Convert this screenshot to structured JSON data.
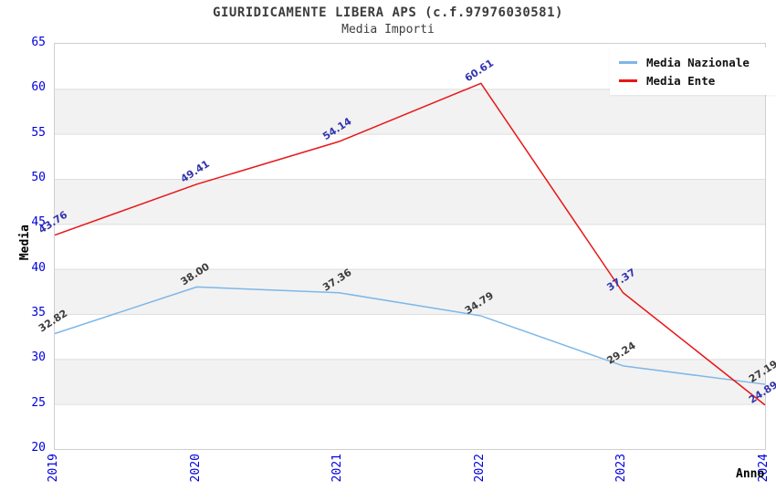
{
  "chart_data": {
    "type": "line",
    "title": "GIURIDICAMENTE LIBERA APS (c.f.97976030581)",
    "subtitle": "Media Importi",
    "xlabel": "Anno",
    "ylabel": "Media",
    "categories": [
      "2019",
      "2020",
      "2021",
      "2022",
      "2023",
      "2024"
    ],
    "ylim": [
      20,
      65
    ],
    "ytick_step": 5,
    "yticks": [
      20,
      25,
      30,
      35,
      40,
      45,
      50,
      55,
      60,
      65
    ],
    "grid": "horizontal gridlines with alternating background bands",
    "legend_position": "top-right",
    "series": [
      {
        "name": "Media Nazionale",
        "color": "#7db7e8",
        "label_color": "#3c3c3c",
        "values": [
          32.82,
          38.0,
          37.36,
          34.79,
          29.24,
          27.19
        ]
      },
      {
        "name": "Media Ente",
        "color": "#e81717",
        "label_color": "#3434ad",
        "values": [
          43.76,
          49.41,
          54.14,
          60.61,
          37.37,
          24.89
        ]
      }
    ],
    "colors": {
      "tick_label": "#0000dd",
      "band": "#f2f2f2",
      "gridline": "#dedede",
      "plot_border": "#cfcfcf",
      "title": "#3c3c3c",
      "axis_title": "#000000"
    }
  }
}
